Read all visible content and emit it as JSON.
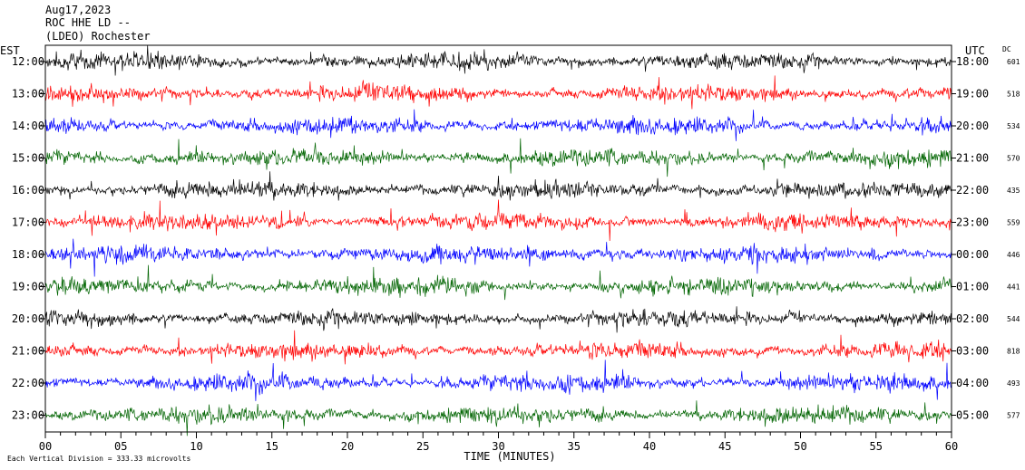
{
  "header": {
    "date": "Aug17,2023",
    "station": "ROC HHE LD --",
    "network": "(LDEO) Rochester"
  },
  "left_axis_label": "EST",
  "right_axis_label": "UTC",
  "dc_label": "DC",
  "footer": {
    "scale_text": "Each Vertical Division =  333.33 microvolts"
  },
  "chart_data": {
    "type": "line",
    "xlabel": "TIME (MINUTES)",
    "x_ticks": [
      "00",
      "05",
      "10",
      "15",
      "20",
      "25",
      "30",
      "35",
      "40",
      "45",
      "50",
      "55",
      "60"
    ],
    "xlim": [
      0,
      60
    ],
    "trace_colors": [
      "#000000",
      "#ff0000",
      "#0000ff",
      "#006400"
    ],
    "rows": [
      {
        "est": "12:00",
        "utc": "18:00",
        "dc": "601"
      },
      {
        "est": "13:00",
        "utc": "19:00",
        "dc": "518"
      },
      {
        "est": "14:00",
        "utc": "20:00",
        "dc": "534"
      },
      {
        "est": "15:00",
        "utc": "21:00",
        "dc": "570"
      },
      {
        "est": "16:00",
        "utc": "22:00",
        "dc": "435"
      },
      {
        "est": "17:00",
        "utc": "23:00",
        "dc": "559"
      },
      {
        "est": "18:00",
        "utc": "00:00",
        "dc": "446"
      },
      {
        "est": "19:00",
        "utc": "01:00",
        "dc": "441"
      },
      {
        "est": "20:00",
        "utc": "02:00",
        "dc": "544"
      },
      {
        "est": "21:00",
        "utc": "03:00",
        "dc": "818"
      },
      {
        "est": "22:00",
        "utc": "04:00",
        "dc": "493"
      },
      {
        "est": "23:00",
        "utc": "05:00",
        "dc": "577"
      }
    ]
  }
}
